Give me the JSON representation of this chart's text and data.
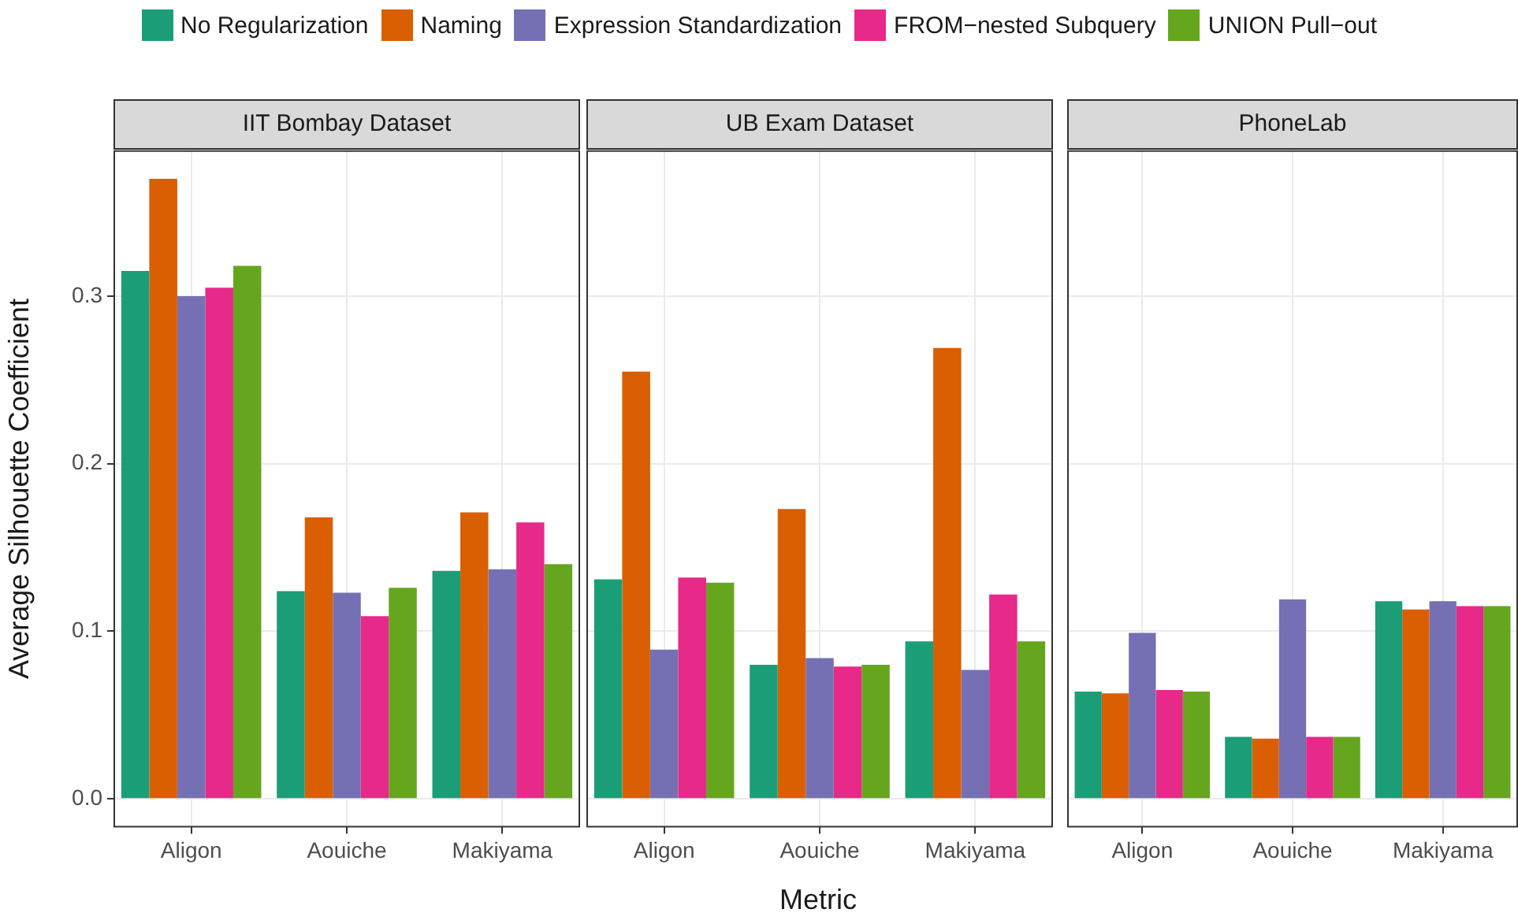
{
  "chart_data": [
    {
      "type": "bar",
      "title": "IIT Bombay Dataset",
      "ylabel": "Average Silhouette Coefficient",
      "categories": [
        "Aligon",
        "Aouiche",
        "Makiyama"
      ],
      "series": [
        {
          "name": "No Regularization",
          "color": "#1b9e77",
          "values": [
            0.315,
            0.124,
            0.136
          ]
        },
        {
          "name": "Naming",
          "color": "#d95f02",
          "values": [
            0.37,
            0.168,
            0.171
          ]
        },
        {
          "name": "Expression Standardization",
          "color": "#7570b3",
          "values": [
            0.3,
            0.123,
            0.137
          ]
        },
        {
          "name": "FROM−nested Subquery",
          "color": "#e7298a",
          "values": [
            0.305,
            0.109,
            0.165
          ]
        },
        {
          "name": "UNION Pull−out",
          "color": "#66a61e",
          "values": [
            0.318,
            0.126,
            0.14
          ]
        }
      ],
      "ylim": [
        -0.017,
        0.387
      ],
      "yticks": [
        {
          "value": 0,
          "label": "0.0"
        },
        0.1,
        0.2,
        0.3
      ],
      "grid": true,
      "legend": "top"
    },
    {
      "type": "bar",
      "title": "UB Exam Dataset",
      "xlabel": "Metric",
      "categories": [
        "Aligon",
        "Aouiche",
        "Makiyama"
      ],
      "series": [
        {
          "color": "#1b9e77",
          "values": [
            0.131,
            0.08,
            0.094
          ]
        },
        {
          "color": "#d95f02",
          "values": [
            0.255,
            0.173,
            0.269
          ]
        },
        {
          "color": "#7570b3",
          "values": [
            0.089,
            0.084,
            0.077
          ]
        },
        {
          "color": "#e7298a",
          "values": [
            0.132,
            0.079,
            0.122
          ]
        },
        {
          "color": "#66a61e",
          "values": [
            0.129,
            0.08,
            0.094
          ]
        }
      ],
      "ylim": [
        -0.017,
        0.387
      ],
      "yticks": [
        0,
        0.1,
        0.2,
        0.3
      ],
      "grid": true,
      "tick_labels": "x"
    },
    {
      "type": "bar",
      "title": "PhoneLab",
      "categories": [
        "Aligon",
        "Aouiche",
        "Makiyama"
      ],
      "series": [
        {
          "color": "#1b9e77",
          "values": [
            0.064,
            0.037,
            0.118
          ]
        },
        {
          "color": "#d95f02",
          "values": [
            0.063,
            0.036,
            0.113
          ]
        },
        {
          "color": "#7570b3",
          "values": [
            0.099,
            0.119,
            0.118
          ]
        },
        {
          "color": "#e7298a",
          "values": [
            0.065,
            0.037,
            0.115
          ]
        },
        {
          "color": "#66a61e",
          "values": [
            0.064,
            0.037,
            0.115
          ]
        }
      ],
      "ylim": [
        -0.017,
        0.387
      ],
      "yticks": [
        0,
        0.1,
        0.2,
        0.3
      ],
      "grid": true,
      "tick_labels": "x"
    }
  ]
}
